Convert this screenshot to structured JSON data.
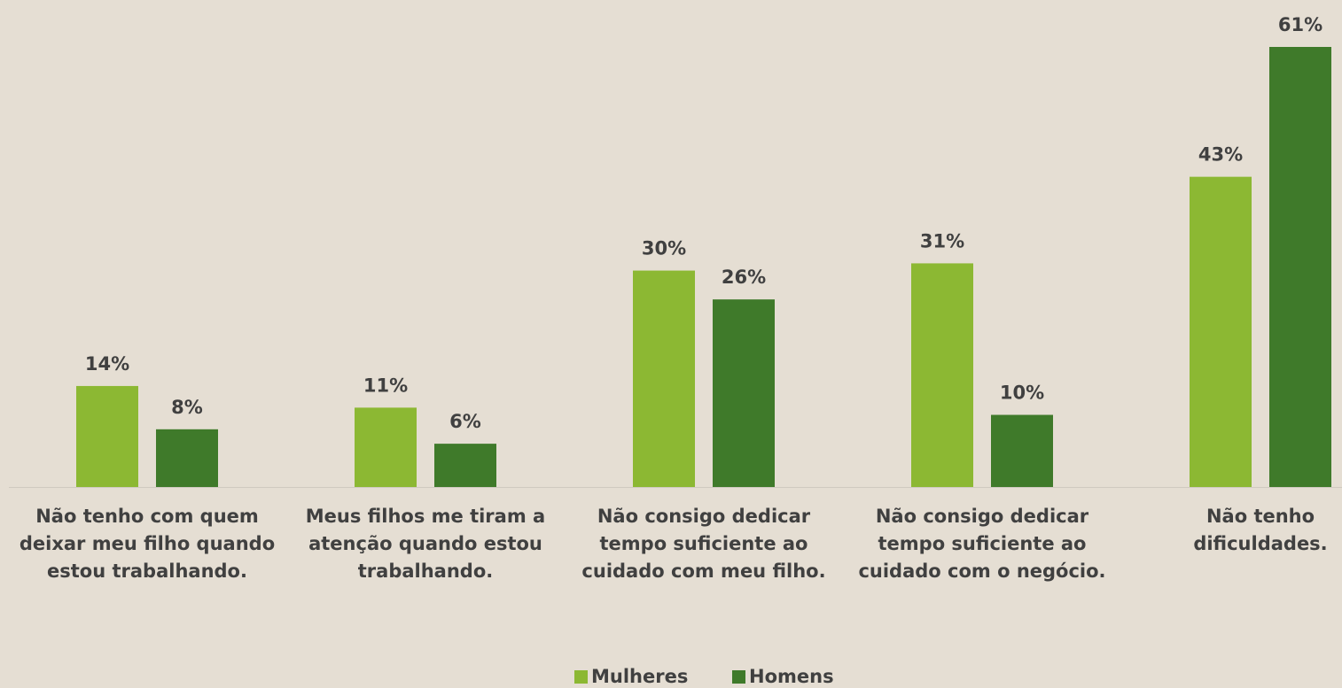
{
  "chart_data": {
    "type": "bar",
    "categories": [
      "Não tenho com quem deixar meu filho quando estou trabalhando.",
      "Meus filhos me tiram a atenção quando estou trabalhando.",
      "Não consigo dedicar tempo suficiente ao cuidado com meu filho.",
      "Não consigo dedicar tempo suficiente ao cuidado com o negócio.",
      "Não tenho dificuldades."
    ],
    "series": [
      {
        "name": "Mulheres",
        "color": "#8cb833",
        "values": [
          14,
          11,
          30,
          31,
          43
        ],
        "value_labels": [
          "14%",
          "11%",
          "30%",
          "31%",
          "43%"
        ]
      },
      {
        "name": "Homens",
        "color": "#3f7a2a",
        "values": [
          8,
          6,
          26,
          10,
          61
        ],
        "value_labels": [
          "8%",
          "6%",
          "26%",
          "10%",
          "61%"
        ]
      }
    ],
    "legend": "bottom"
  }
}
